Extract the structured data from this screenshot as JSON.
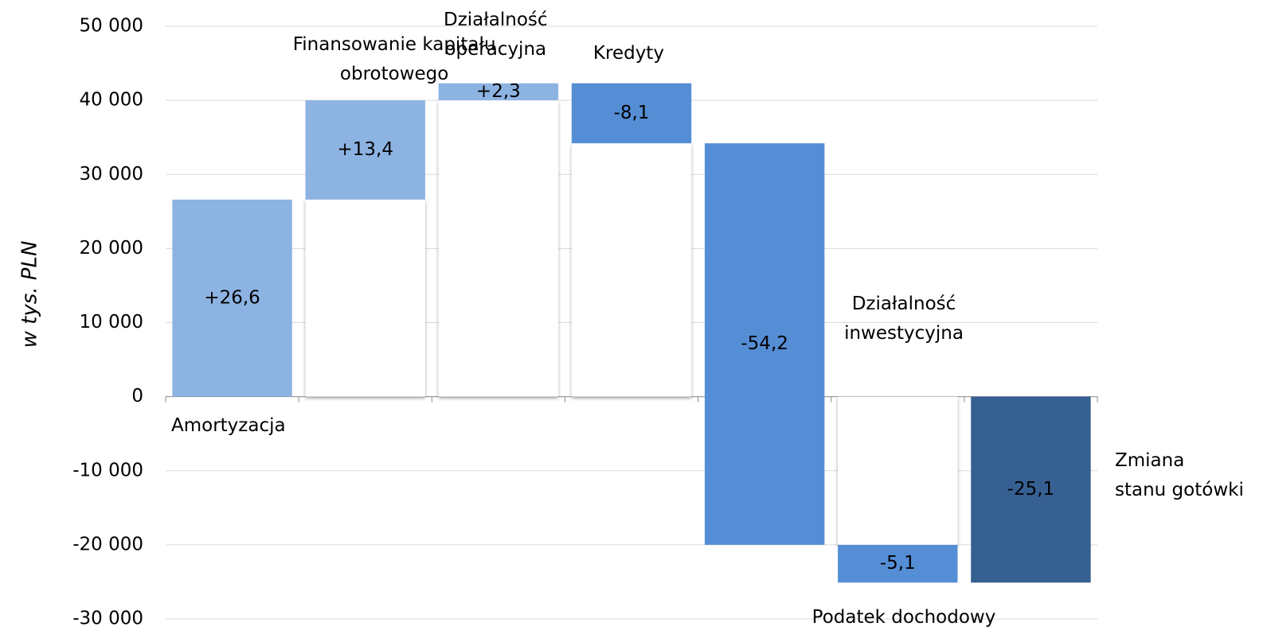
{
  "chart_data": {
    "type": "waterfall",
    "y_label": "w tys. PLN",
    "categories": [
      "Amortyzacja",
      "Finansowanie  kapitału\nobrotowego",
      "Działalność\noperacyjna",
      "Kredyty",
      "Działalność\ninwestycyjna",
      "Podatek dochodowy",
      "Zmiana\nstanu gotówki"
    ],
    "values": [
      26600,
      13400,
      2300,
      -8100,
      -54200,
      -5100,
      -25100
    ],
    "value_labels": [
      "+26,6",
      "+13,4",
      "+2,3",
      "-8,1",
      "-54,2",
      "-5,1",
      "-25,1"
    ],
    "colors": [
      "#8db3e2",
      "#8db3e2",
      "#8db3e2",
      "#558ed5",
      "#558ed5",
      "#558ed5",
      "#376092"
    ],
    "last_is_total": true,
    "ylim": [
      -30000,
      50000
    ],
    "yticks": [
      {
        "value": -30000,
        "label": "-30 000"
      },
      {
        "value": -20000,
        "label": "-20 000"
      },
      {
        "value": -10000,
        "label": "-10 000"
      },
      0,
      {
        "value": 10000,
        "label": "10 000"
      },
      {
        "value": 20000,
        "label": "20 000"
      },
      {
        "value": 30000,
        "label": "30 000"
      },
      {
        "value": 40000,
        "label": "40 000"
      },
      {
        "value": 50000,
        "label": "50 000"
      }
    ],
    "grid": true
  }
}
